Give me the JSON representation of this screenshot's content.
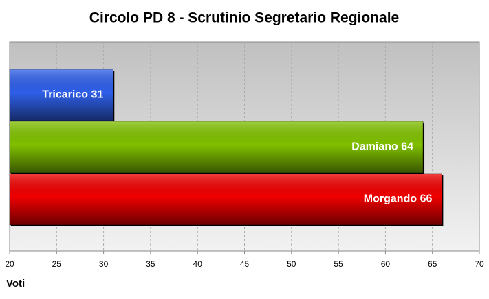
{
  "chart_data": {
    "type": "bar",
    "orientation": "horizontal",
    "title": "Circolo PD 8 - Scrutinio Segretario Regionale",
    "x_label": "Voti",
    "values": [
      31,
      64,
      66
    ],
    "value_labels": [
      "Tricarico 31",
      "Damiano 64",
      "Morgando 66"
    ],
    "colors": [
      "#2f5fe8",
      "#80c000",
      "#ee0000"
    ],
    "xlim": [
      20,
      70
    ],
    "xticks": [
      20,
      25,
      30,
      35,
      40,
      45,
      50,
      55,
      60,
      65,
      70
    ],
    "grid": true
  }
}
